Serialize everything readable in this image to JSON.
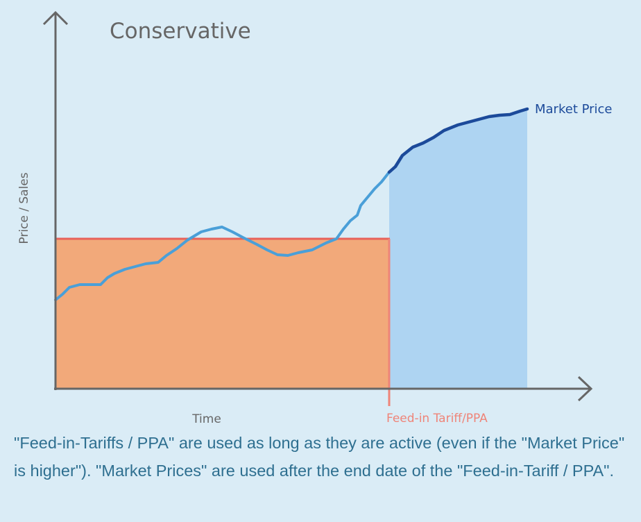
{
  "title": "Conservative",
  "y_axis_label": "Price / Sales",
  "x_axis_label": "Time",
  "series": {
    "market_price_label": "Market Price",
    "feed_in_label": "Feed-in Tariff/PPA"
  },
  "caption": "\"Feed-in-Tariffs / PPA\" are used as long as they are active (even if the \"Market Price\" is higher\"). \"Market Prices\" are used after the end date of the \"Feed-in-Tariff / PPA\".",
  "colors": {
    "background": "#daecf6",
    "feed_in_fill": "#f2a97a",
    "feed_in_line": "#e8625a",
    "market_fill": "#aed4f2",
    "market_line_light": "#4a9fd8",
    "market_line_dark": "#1c4a9a",
    "axis": "#666666"
  }
}
